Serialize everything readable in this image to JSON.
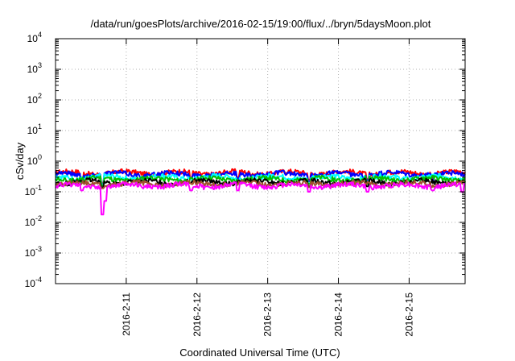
{
  "chart_data": {
    "type": "line",
    "title": "/data/run/goesPlots/archive/2016-02-15/19:00/flux/../bryn/5daysMoon.plot",
    "xlabel": "Coordinated Universal Time (UTC)",
    "ylabel": "cSv/day",
    "yscale": "log",
    "ylim": [
      0.0001,
      10000
    ],
    "yticks": [
      {
        "value": 0.0001,
        "mantissa": "10",
        "exp": "-4"
      },
      {
        "value": 0.001,
        "mantissa": "10",
        "exp": "-3"
      },
      {
        "value": 0.01,
        "mantissa": "10",
        "exp": "-2"
      },
      {
        "value": 0.1,
        "mantissa": "10",
        "exp": "-1"
      },
      {
        "value": 1,
        "mantissa": "10",
        "exp": "0"
      },
      {
        "value": 10,
        "mantissa": "10",
        "exp": "1"
      },
      {
        "value": 100,
        "mantissa": "10",
        "exp": "2"
      },
      {
        "value": 1000,
        "mantissa": "10",
        "exp": "3"
      },
      {
        "value": 10000,
        "mantissa": "10",
        "exp": "4"
      }
    ],
    "xlim": [
      "2016-02-10T00:00",
      "2016-02-15T19:00"
    ],
    "xticks": [
      "2016-2-11",
      "2016-2-12",
      "2016-2-13",
      "2016-2-14",
      "2016-2-15"
    ],
    "xtick_dates": [
      "2016-02-11T00:00",
      "2016-02-12T00:00",
      "2016-02-13T00:00",
      "2016-02-14T00:00",
      "2016-02-15T00:00"
    ],
    "grid": true,
    "series": [
      {
        "color": "#ff0000",
        "level": 0.42,
        "dips": [
          {
            "x": "2016-02-10T09:00",
            "value": 0.22
          },
          {
            "x": "2016-02-10T16:00",
            "value": 0.2
          },
          {
            "x": "2016-02-11T22:00",
            "value": 0.3
          },
          {
            "x": "2016-02-12T14:00",
            "value": 0.3
          },
          {
            "x": "2016-02-13T14:00",
            "value": 0.25
          },
          {
            "x": "2016-02-14T10:00",
            "value": 0.26
          },
          {
            "x": "2016-02-15T08:00",
            "value": 0.28
          }
        ]
      },
      {
        "color": "#0000ff",
        "level": 0.38,
        "dips": [
          {
            "x": "2016-02-10T09:00",
            "value": 0.2
          },
          {
            "x": "2016-02-10T16:00",
            "value": 0.18
          },
          {
            "x": "2016-02-11T22:00",
            "value": 0.27
          },
          {
            "x": "2016-02-12T14:00",
            "value": 0.27
          },
          {
            "x": "2016-02-13T14:00",
            "value": 0.22
          },
          {
            "x": "2016-02-14T10:00",
            "value": 0.24
          },
          {
            "x": "2016-02-15T08:00",
            "value": 0.25
          }
        ]
      },
      {
        "color": "#00ffff",
        "level": 0.3,
        "dips": [
          {
            "x": "2016-02-10T16:00",
            "value": 0.17
          },
          {
            "x": "2016-02-12T14:00",
            "value": 0.22
          },
          {
            "x": "2016-02-13T14:00",
            "value": 0.19
          },
          {
            "x": "2016-02-14T10:00",
            "value": 0.2
          }
        ]
      },
      {
        "color": "#00c000",
        "level": 0.26,
        "dips": [
          {
            "x": "2016-02-10T16:00",
            "value": 0.16
          },
          {
            "x": "2016-02-13T14:00",
            "value": 0.18
          },
          {
            "x": "2016-02-14T10:00",
            "value": 0.18
          }
        ]
      },
      {
        "color": "#000000",
        "level": 0.21,
        "dips": [
          {
            "x": "2016-02-10T16:00",
            "value": 0.14
          },
          {
            "x": "2016-02-13T14:00",
            "value": 0.15
          },
          {
            "x": "2016-02-14T10:00",
            "value": 0.15
          }
        ]
      },
      {
        "color": "#a0522d",
        "level": 0.185,
        "dips": [
          {
            "x": "2016-02-10T16:00",
            "value": 0.13
          },
          {
            "x": "2016-02-13T14:00",
            "value": 0.14
          }
        ]
      },
      {
        "color": "#ff00ff",
        "level": 0.16,
        "dips": [
          {
            "x": "2016-02-10T09:00",
            "value": 0.11
          },
          {
            "x": "2016-02-10T16:00",
            "value": 0.018
          },
          {
            "x": "2016-02-10T17:00",
            "value": 0.05
          },
          {
            "x": "2016-02-11T22:00",
            "value": 0.11
          },
          {
            "x": "2016-02-12T14:00",
            "value": 0.11
          },
          {
            "x": "2016-02-13T14:00",
            "value": 0.1
          },
          {
            "x": "2016-02-14T10:00",
            "value": 0.1
          },
          {
            "x": "2016-02-15T08:00",
            "value": 0.11
          },
          {
            "x": "2016-02-15T18:00",
            "value": 0.1
          }
        ]
      }
    ]
  }
}
